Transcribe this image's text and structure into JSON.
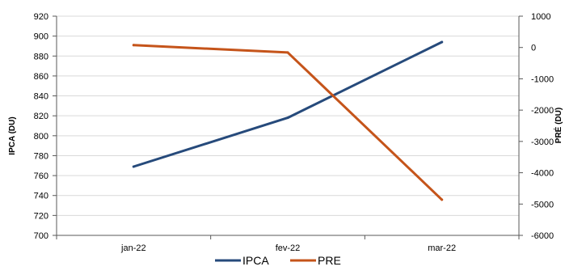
{
  "chart_data": {
    "type": "line",
    "categories": [
      "jan-22",
      "fev-22",
      "mar-22"
    ],
    "series": [
      {
        "name": "IPCA",
        "axis": "left",
        "color": "#264a7b",
        "values": [
          769,
          818,
          894
        ]
      },
      {
        "name": "PRE",
        "axis": "right",
        "color": "#c5541a",
        "values": [
          75,
          -160,
          -4860
        ]
      }
    ],
    "left_axis": {
      "label": "IPCA (DU)",
      "ylim": [
        700,
        920
      ],
      "ticks": [
        700,
        720,
        740,
        760,
        780,
        800,
        820,
        840,
        860,
        880,
        900,
        920
      ]
    },
    "right_axis": {
      "label": "PRÉ (DU)",
      "ylim": [
        -6000,
        1000
      ],
      "ticks": [
        -6000,
        -5000,
        -4000,
        -3000,
        -2000,
        -1000,
        0,
        1000
      ]
    },
    "grid": "horizontal",
    "legend_position": "bottom"
  }
}
